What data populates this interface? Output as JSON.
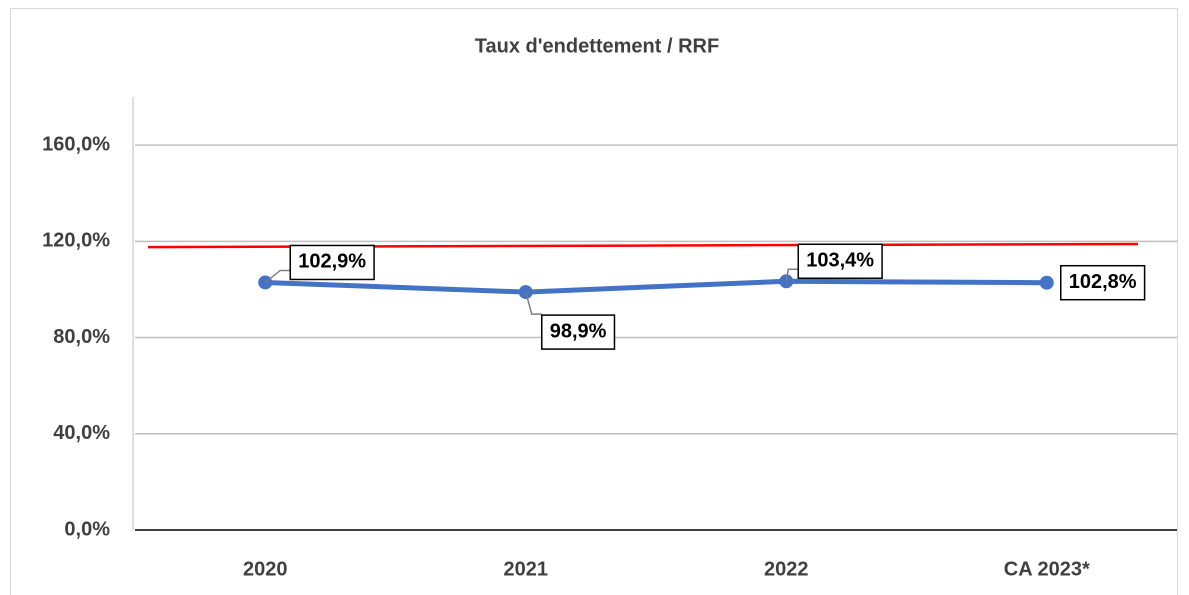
{
  "chart_data": {
    "type": "line",
    "title": "Taux d'endettement / RRF",
    "categories": [
      "2020",
      "2021",
      "2022",
      "CA 2023*"
    ],
    "series": [
      {
        "color": "#4472c4",
        "values": [
          102.9,
          98.9,
          103.4,
          102.8
        ],
        "value_labels": [
          "102,9%",
          "98,9%",
          "103,4%",
          "102,8%"
        ]
      }
    ],
    "reference_line": {
      "values": [
        117.6,
        118.9
      ],
      "color": "#ff0000"
    },
    "ylim": [
      0,
      180
    ],
    "yticks": [
      {
        "value": 0,
        "label": "0,0%"
      },
      {
        "value": 40,
        "label": "40,0%"
      },
      {
        "value": 80,
        "label": "80,0%"
      },
      {
        "value": 120,
        "label": "120,0%"
      },
      {
        "value": 160,
        "label": "160,0%"
      }
    ],
    "grid": true
  }
}
